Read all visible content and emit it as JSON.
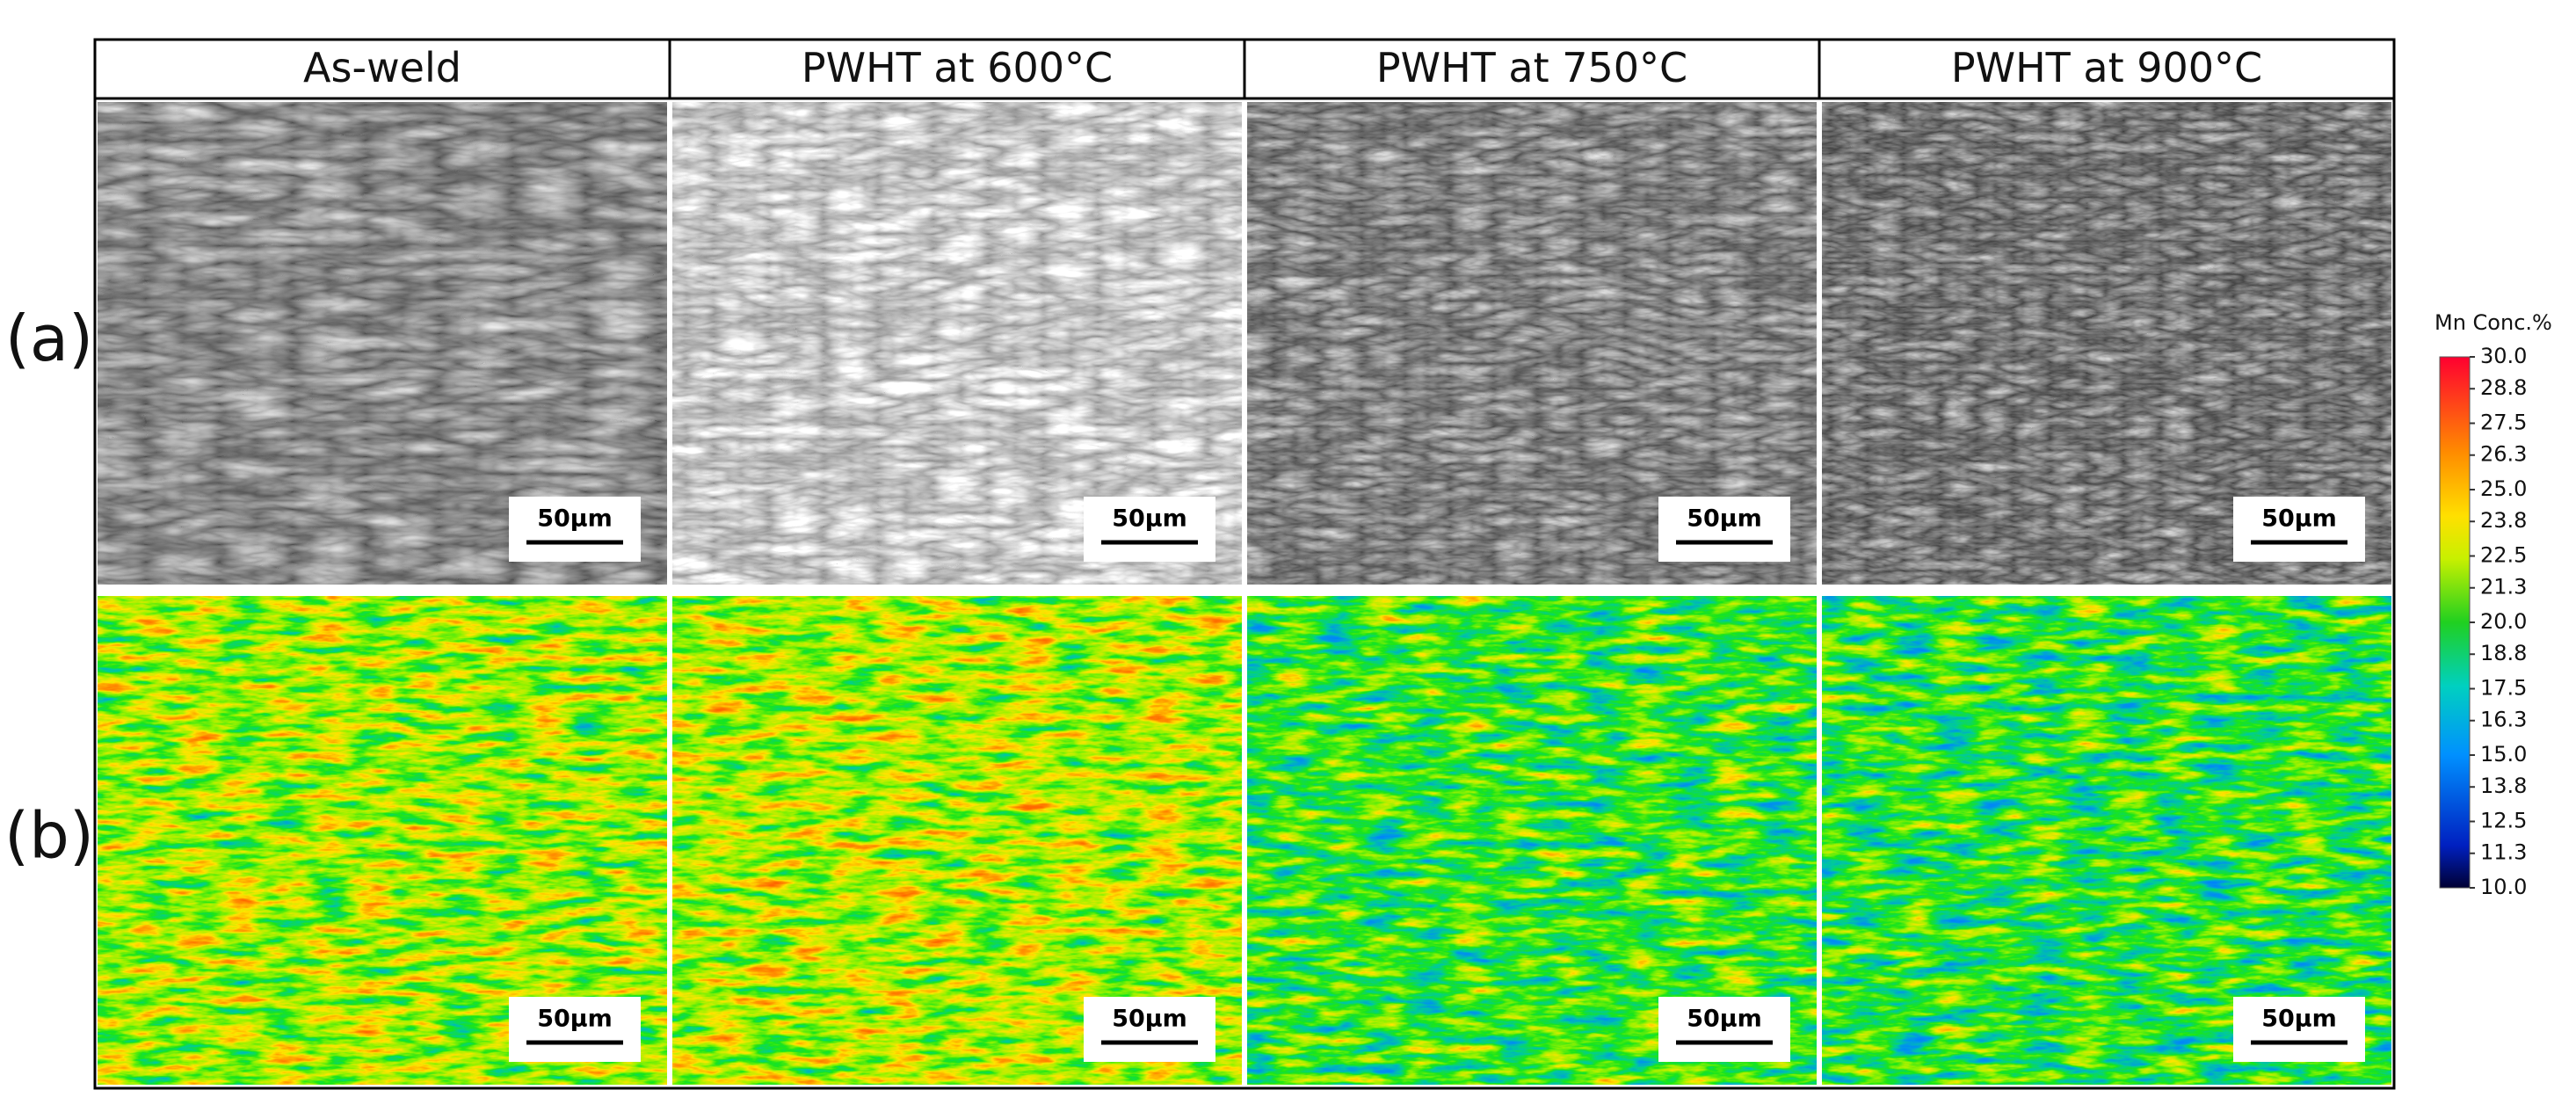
{
  "figure": {
    "columns": [
      "As-weld",
      "PWHT at 600°C",
      "PWHT at 750°C",
      "PWHT at 900°C"
    ],
    "rows": [
      {
        "label": "(a)"
      },
      {
        "label": "(b)"
      }
    ],
    "scale_bar": "50μm",
    "colorbar": {
      "title": "Mn Conc.%",
      "range": [
        10,
        30
      ],
      "ticks": [
        {
          "value": 30,
          "label": "30.0"
        },
        {
          "value": 28.8,
          "label": "28.8"
        },
        {
          "value": 27.5,
          "label": "27.5"
        },
        {
          "value": 26.3,
          "label": "26.3"
        },
        {
          "value": 25,
          "label": "25.0"
        },
        {
          "value": 23.8,
          "label": "23.8"
        },
        {
          "value": 22.5,
          "label": "22.5"
        },
        {
          "value": 21.3,
          "label": "21.3"
        },
        {
          "value": 20,
          "label": "20.0"
        },
        {
          "value": 18.8,
          "label": "18.8"
        },
        {
          "value": 17.5,
          "label": "17.5"
        },
        {
          "value": 16.3,
          "label": "16.3"
        },
        {
          "value": 15,
          "label": "15.0"
        },
        {
          "value": 13.8,
          "label": "13.8"
        },
        {
          "value": 12.5,
          "label": "12.5"
        },
        {
          "value": 11.3,
          "label": "11.3"
        },
        {
          "value": 10,
          "label": "10.0"
        }
      ]
    }
  }
}
